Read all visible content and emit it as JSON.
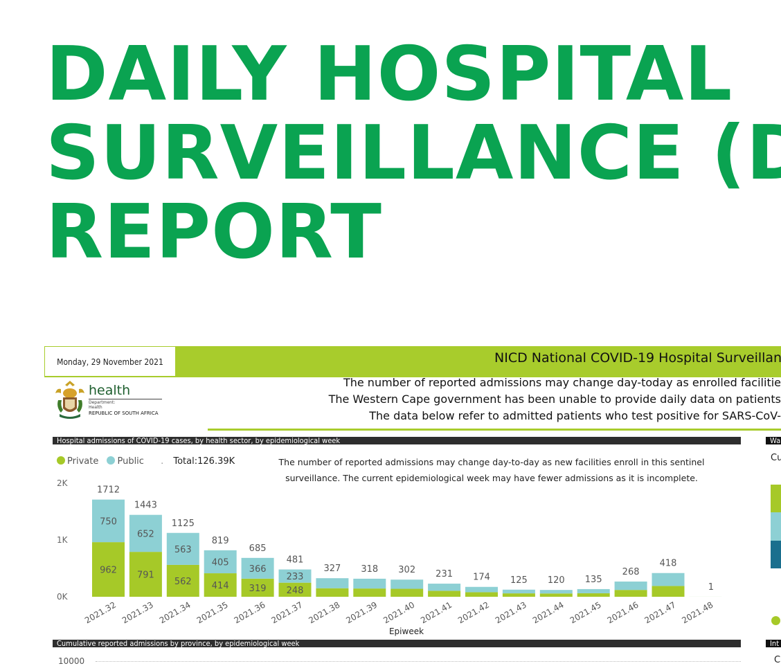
{
  "report": {
    "title_line1": "DAILY HOSPITAL",
    "title_line2": "SURVEILLANCE (D",
    "title_line3": "REPORT"
  },
  "header": {
    "date": "Monday, 29 November 2021",
    "nicd_title": "NICD National COVID-19 Hospital Surveillan",
    "note_1": "The number of reported admissions may change day-today as enrolled facilitie",
    "note_2": "The Western Cape government has been unable to provide daily data on patients",
    "note_3": "The data below refer to admitted patients who test positive for SARS-CoV-"
  },
  "logo": {
    "word": "health",
    "line1": "Department:",
    "line2": "Health",
    "line3": "REPUBLIC OF SOUTH AFRICA"
  },
  "sections": {
    "admissions_title": "Hospital admissions of COVID-19 cases, by health sector, by epidemiological week",
    "cumulative_title": "Cumulative reported admissions by province, by epidemiological week",
    "cumulative_tick": "10000"
  },
  "right_panel": {
    "frag_1": "Wa",
    "frag_2": "Cu",
    "frag_3": "Int",
    "frag_4": "C"
  },
  "colors": {
    "brand_green": "#0aa351",
    "lime": "#a8cc2c",
    "private": "#a6c928",
    "public": "#8dd0d4",
    "dark_teal": "#1a6f8e"
  },
  "chart_data": {
    "type": "bar",
    "stacked": true,
    "legend": [
      "Private",
      "Public"
    ],
    "total_label": "Total:",
    "total_value": "126.39K",
    "note_line1": "The number of reported admissions may change day-to-day as new facilities enroll in this sentinel",
    "note_line2": "surveillance. The current epidemiological week may have fewer admissions as it is incomplete.",
    "xlabel": "Epiweek",
    "ylim": [
      0,
      2000
    ],
    "yticks": [
      "0K",
      "1K",
      "2K"
    ],
    "categories": [
      "2021.32",
      "2021.33",
      "2021.34",
      "2021.35",
      "2021.36",
      "2021.37",
      "2021.38",
      "2021.39",
      "2021.40",
      "2021.41",
      "2021.42",
      "2021.43",
      "2021.44",
      "2021.45",
      "2021.46",
      "2021.47",
      "2021.48"
    ],
    "series": [
      {
        "name": "Private",
        "values": [
          962,
          791,
          562,
          414,
          319,
          248,
          150,
          145,
          140,
          105,
          80,
          60,
          58,
          62,
          120,
          190,
          0.5
        ]
      },
      {
        "name": "Public",
        "values": [
          750,
          652,
          563,
          405,
          366,
          233,
          177,
          173,
          162,
          126,
          94,
          65,
          62,
          73,
          148,
          228,
          0.5
        ]
      }
    ],
    "totals": [
      1712,
      1443,
      1125,
      819,
      685,
      481,
      327,
      318,
      302,
      231,
      174,
      125,
      120,
      135,
      268,
      418,
      1
    ],
    "segment_labels_private": [
      "962",
      "791",
      "562",
      "414",
      "319",
      "248"
    ],
    "segment_labels_public": [
      "750",
      "652",
      "563",
      "405",
      "366",
      "233"
    ]
  }
}
